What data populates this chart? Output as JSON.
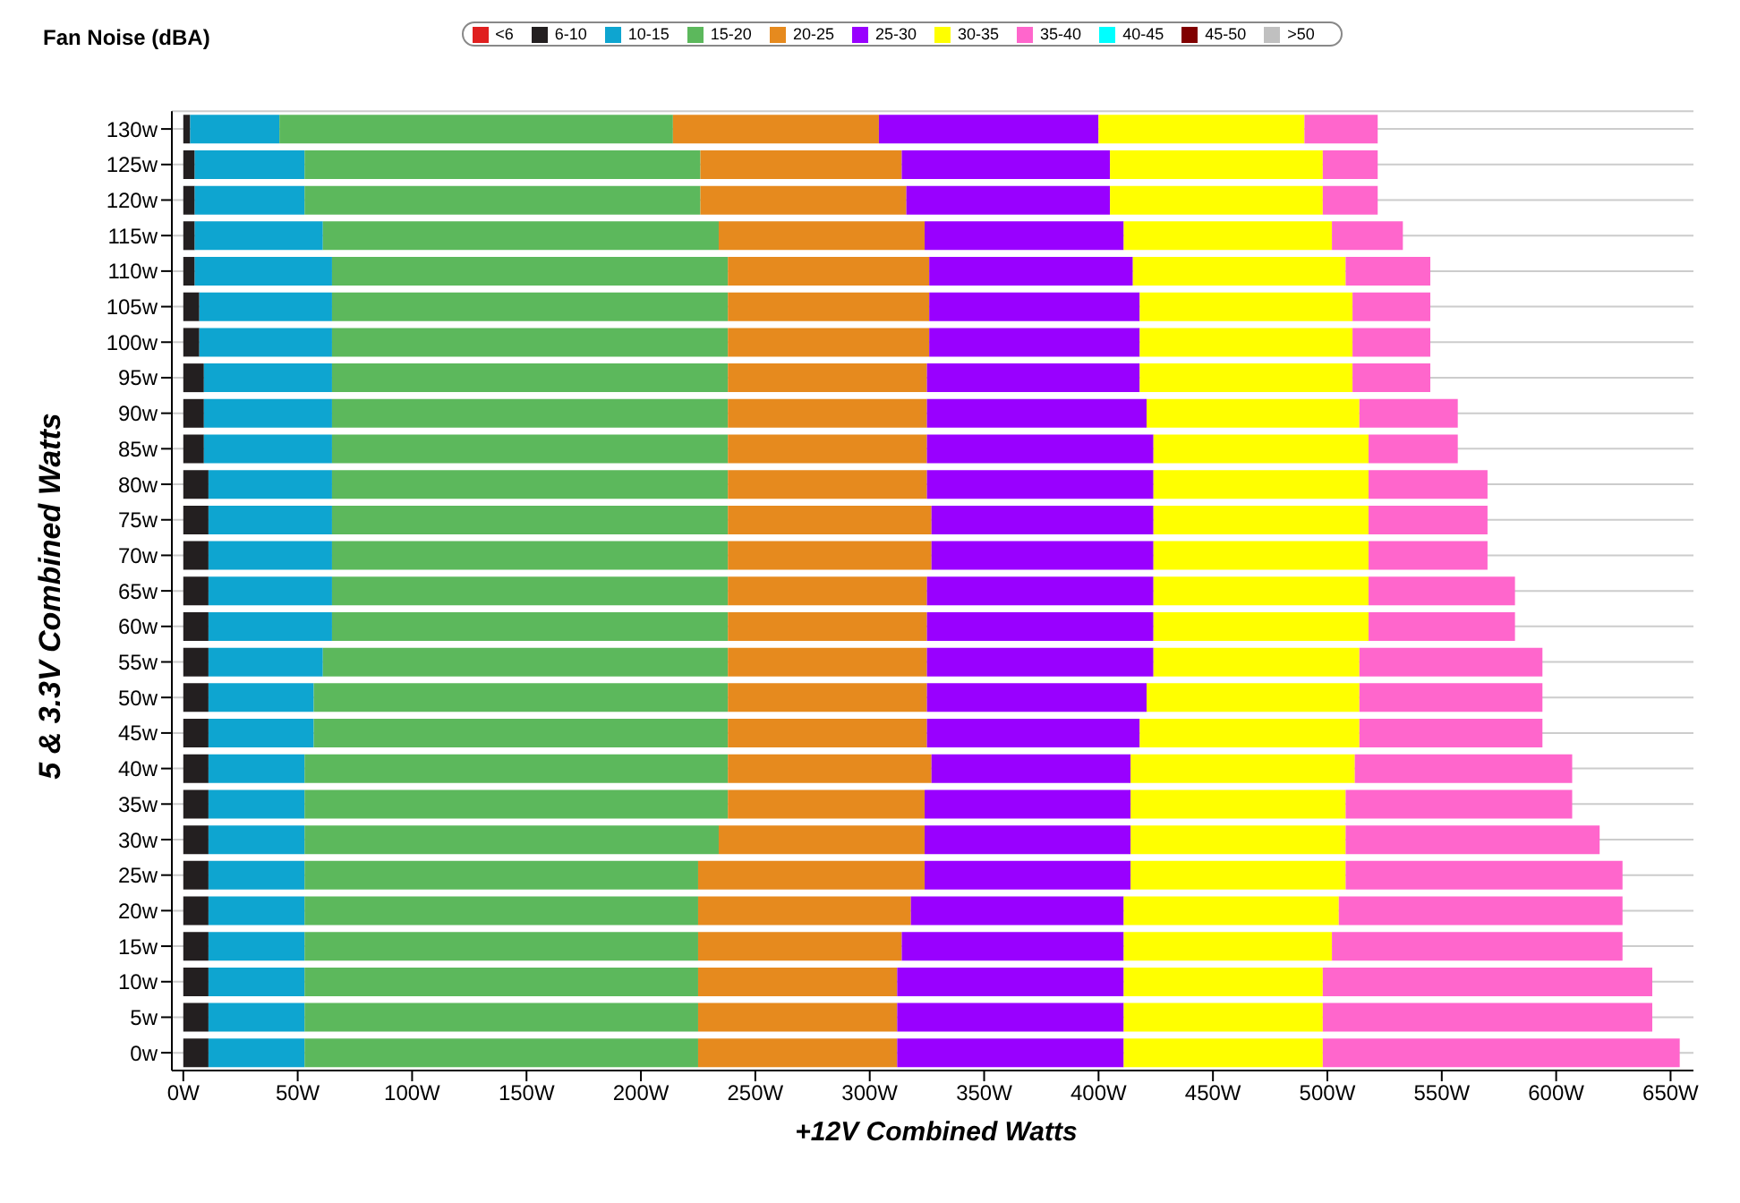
{
  "chart_data": {
    "type": "bar",
    "orientation": "horizontal",
    "stacked": true,
    "subtitle": "Fan Noise (dBA)",
    "xlabel": "+12V Combined Watts",
    "ylabel": "5 & 3.3V Combined Watts",
    "categories": [
      "130w",
      "125w",
      "120w",
      "115w",
      "110w",
      "105w",
      "100w",
      "95w",
      "90w",
      "85w",
      "80w",
      "75w",
      "70w",
      "65w",
      "60w",
      "55w",
      "50w",
      "45w",
      "40w",
      "35w",
      "30w",
      "25w",
      "20w",
      "15w",
      "10w",
      "5w",
      "0w"
    ],
    "series": [
      {
        "name": "<6",
        "color": "#e02020",
        "values": [
          null,
          null,
          null,
          null,
          null,
          null,
          null,
          null,
          null,
          null,
          null,
          null,
          null,
          null,
          null,
          null,
          null,
          null,
          null,
          null,
          null,
          null,
          null,
          null,
          null,
          null,
          null
        ]
      },
      {
        "name": "6-10",
        "color": "#231f20",
        "values": [
          3,
          5,
          5,
          5,
          5,
          7,
          7,
          9,
          9,
          9,
          11,
          11,
          11,
          11,
          11,
          11,
          11,
          11,
          11,
          11,
          11,
          11,
          11,
          11,
          11,
          11,
          11
        ]
      },
      {
        "name": "10-15",
        "color": "#0ea5d0",
        "values": [
          39,
          48,
          48,
          56,
          60,
          58,
          58,
          56,
          56,
          56,
          54,
          54,
          54,
          54,
          54,
          50,
          46,
          46,
          42,
          42,
          42,
          42,
          42,
          42,
          42,
          42,
          42
        ]
      },
      {
        "name": "15-20",
        "color": "#5cb85c",
        "values": [
          172,
          173,
          173,
          173,
          173,
          173,
          173,
          173,
          173,
          173,
          173,
          173,
          173,
          173,
          173,
          177,
          181,
          181,
          185,
          185,
          181,
          172,
          172,
          172,
          172,
          172,
          172
        ]
      },
      {
        "name": "20-25",
        "color": "#e68a1e",
        "values": [
          90,
          88,
          90,
          90,
          88,
          88,
          88,
          87,
          87,
          87,
          87,
          89,
          89,
          87,
          87,
          87,
          87,
          87,
          89,
          86,
          90,
          99,
          93,
          89,
          87,
          87,
          87
        ]
      },
      {
        "name": "25-30",
        "color": "#9900ff",
        "values": [
          96,
          91,
          89,
          87,
          89,
          92,
          92,
          93,
          96,
          99,
          99,
          97,
          97,
          99,
          99,
          99,
          96,
          93,
          87,
          90,
          90,
          90,
          93,
          97,
          99,
          99,
          99
        ]
      },
      {
        "name": "30-35",
        "color": "#ffff00",
        "values": [
          90,
          93,
          93,
          91,
          93,
          93,
          93,
          93,
          93,
          94,
          94,
          94,
          94,
          94,
          94,
          90,
          93,
          96,
          98,
          94,
          94,
          94,
          94,
          91,
          87,
          87,
          87
        ]
      },
      {
        "name": "35-40",
        "color": "#ff66cc",
        "values": [
          32,
          24,
          24,
          31,
          37,
          34,
          34,
          34,
          43,
          39,
          52,
          52,
          52,
          64,
          64,
          80,
          80,
          80,
          95,
          99,
          111,
          121,
          124,
          127,
          144,
          144,
          156
        ]
      },
      {
        "name": "40-45",
        "color": "#00ffff",
        "values": [
          null,
          null,
          null,
          null,
          null,
          null,
          null,
          null,
          null,
          null,
          null,
          null,
          null,
          null,
          null,
          null,
          null,
          null,
          null,
          null,
          null,
          null,
          null,
          null,
          null,
          null,
          null
        ]
      },
      {
        "name": "45-50",
        "color": "#800000",
        "values": [
          null,
          null,
          null,
          null,
          null,
          null,
          null,
          null,
          null,
          null,
          null,
          null,
          null,
          null,
          null,
          null,
          null,
          null,
          null,
          null,
          null,
          null,
          null,
          null,
          null,
          null,
          null
        ]
      },
      {
        "name": ">50",
        "color": "#c0c0c0",
        "values": [
          null,
          null,
          null,
          null,
          null,
          null,
          null,
          null,
          null,
          null,
          null,
          null,
          null,
          null,
          null,
          null,
          null,
          null,
          null,
          null,
          null,
          null,
          null,
          null,
          null,
          null,
          null
        ]
      }
    ],
    "xlim": [
      -5,
      660
    ],
    "xticks": [
      {
        "value": 0,
        "label": "0W"
      },
      {
        "value": 50,
        "label": "50W"
      },
      {
        "value": 100,
        "label": "100W"
      },
      {
        "value": 150,
        "label": "150W"
      },
      {
        "value": 200,
        "label": "200W"
      },
      {
        "value": 250,
        "label": "250W"
      },
      {
        "value": 300,
        "label": "300W"
      },
      {
        "value": 350,
        "label": "350W"
      },
      {
        "value": 400,
        "label": "400W"
      },
      {
        "value": 450,
        "label": "450W"
      },
      {
        "value": 500,
        "label": "500W"
      },
      {
        "value": 550,
        "label": "550W"
      },
      {
        "value": 600,
        "label": "600W"
      },
      {
        "value": 650,
        "label": "650W"
      }
    ],
    "grid": "y",
    "legend": "top"
  }
}
